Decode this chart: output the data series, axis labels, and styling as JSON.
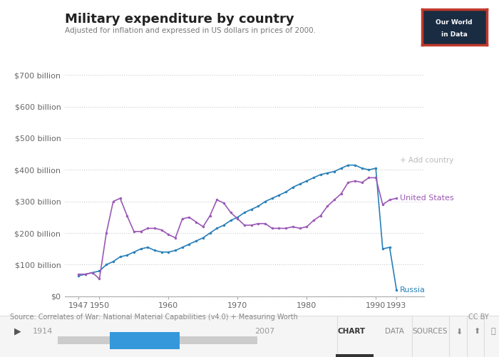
{
  "title": "Military expenditure by country",
  "subtitle": "Adjusted for inflation and expressed in US dollars in prices of 2000.",
  "source": "Source: Correlates of War: National Material Capabilities (v4.0) + Measuring Worth",
  "cc_label": "CC BY",
  "ylim": [
    0,
    700
  ],
  "yticks": [
    0,
    100,
    200,
    300,
    400,
    500,
    600,
    700
  ],
  "ytick_labels": [
    "$0",
    "$100 billion",
    "$200 billion",
    "$300 billion",
    "$400 billion",
    "$500 billion",
    "$600 billion",
    "$700 billion"
  ],
  "xticks": [
    1947,
    1950,
    1960,
    1970,
    1980,
    1990,
    1993
  ],
  "xtick_labels": [
    "1947",
    "1950",
    "1960",
    "1970",
    "1980",
    "1990",
    "1993"
  ],
  "background_color": "#ffffff",
  "grid_color": "#cccccc",
  "us_color": "#9b59b6",
  "russia_color": "#2980b9",
  "us_label": "United States",
  "russia_label": "Russia",
  "add_country_label": "+ Add country",
  "us_years": [
    1947,
    1948,
    1949,
    1950,
    1951,
    1952,
    1953,
    1954,
    1955,
    1956,
    1957,
    1958,
    1959,
    1960,
    1961,
    1962,
    1963,
    1964,
    1965,
    1966,
    1967,
    1968,
    1969,
    1970,
    1971,
    1972,
    1973,
    1974,
    1975,
    1976,
    1977,
    1978,
    1979,
    1980,
    1981,
    1982,
    1983,
    1984,
    1985,
    1986,
    1987,
    1988,
    1989,
    1990,
    1991,
    1992,
    1993
  ],
  "us_values": [
    70,
    70,
    75,
    55,
    200,
    300,
    310,
    255,
    205,
    205,
    215,
    215,
    210,
    195,
    185,
    245,
    250,
    235,
    220,
    255,
    305,
    295,
    265,
    245,
    225,
    225,
    230,
    230,
    215,
    215,
    215,
    220,
    215,
    220,
    240,
    255,
    285,
    305,
    325,
    360,
    365,
    360,
    375,
    375,
    290,
    305,
    310
  ],
  "russia_years": [
    1947,
    1948,
    1949,
    1950,
    1951,
    1952,
    1953,
    1954,
    1955,
    1956,
    1957,
    1958,
    1959,
    1960,
    1961,
    1962,
    1963,
    1964,
    1965,
    1966,
    1967,
    1968,
    1969,
    1970,
    1971,
    1972,
    1973,
    1974,
    1975,
    1976,
    1977,
    1978,
    1979,
    1980,
    1981,
    1982,
    1983,
    1984,
    1985,
    1986,
    1987,
    1988,
    1989,
    1990,
    1991,
    1992,
    1993
  ],
  "russia_values": [
    65,
    70,
    75,
    80,
    100,
    110,
    125,
    130,
    140,
    150,
    155,
    145,
    140,
    140,
    145,
    155,
    165,
    175,
    185,
    200,
    215,
    225,
    240,
    250,
    265,
    275,
    285,
    300,
    310,
    320,
    330,
    345,
    355,
    365,
    375,
    385,
    390,
    395,
    405,
    415,
    415,
    405,
    400,
    405,
    150,
    155,
    20
  ],
  "xlim_left": 1945,
  "xlim_right": 1997
}
